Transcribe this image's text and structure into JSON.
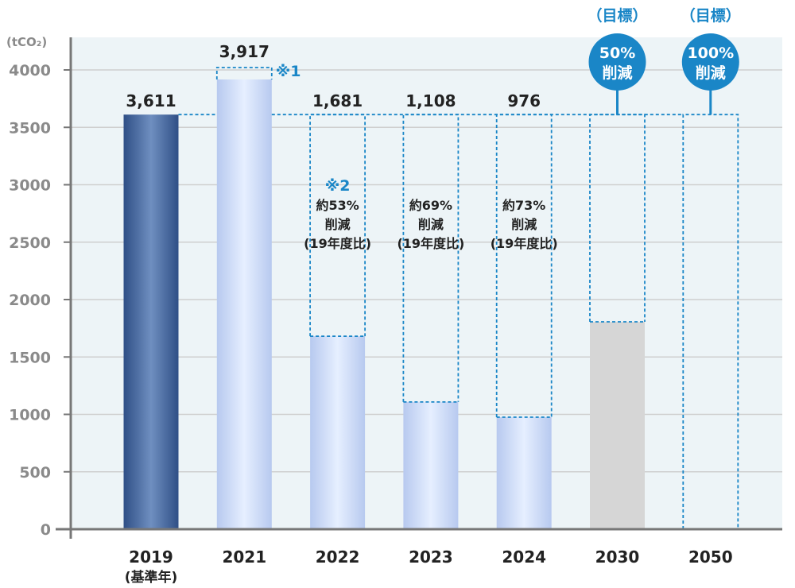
{
  "chart_data": {
    "type": "bar",
    "unit": "(tCO₂)",
    "ylim": [
      0,
      4000
    ],
    "yticks": [
      0,
      500,
      1000,
      1500,
      2000,
      2500,
      3000,
      3500,
      4000
    ],
    "grid": true,
    "categories": [
      {
        "label": "2019",
        "sublabel": "(基準年)"
      },
      {
        "label": "2021"
      },
      {
        "label": "2022"
      },
      {
        "label": "2023"
      },
      {
        "label": "2024"
      },
      {
        "label": "2030"
      },
      {
        "label": "2050"
      }
    ],
    "values": [
      3611,
      3917,
      1681,
      1108,
      976,
      1806,
      0
    ],
    "value_labels": [
      "3,611",
      "3,917",
      "1,681",
      "1,108",
      "976",
      "",
      ""
    ],
    "baseline_value": 3611,
    "bar_styles": [
      "base",
      "actual",
      "actual",
      "actual",
      "actual",
      "target",
      "target"
    ],
    "reductions": [
      null,
      {
        "note": "※1"
      },
      {
        "note": "※2",
        "lines": [
          "約53%",
          "削減",
          "(19年度比)"
        ]
      },
      {
        "lines": [
          "約69%",
          "削減",
          "(19年度比)"
        ]
      },
      {
        "lines": [
          "約73%",
          "削減",
          "(19年度比)"
        ]
      },
      null,
      null
    ],
    "targets": [
      null,
      null,
      null,
      null,
      null,
      {
        "heading": "（目標）",
        "badge_lines": [
          "50%",
          "削減"
        ]
      },
      {
        "heading": "（目標）",
        "badge_lines": [
          "100%",
          "削減"
        ]
      }
    ],
    "colors": {
      "base": "#3c5f99",
      "actual": "#c7d6f4",
      "target": "#d6d6d6",
      "accent": "#1a86c7",
      "plot_bg": "#edf4f7"
    }
  }
}
